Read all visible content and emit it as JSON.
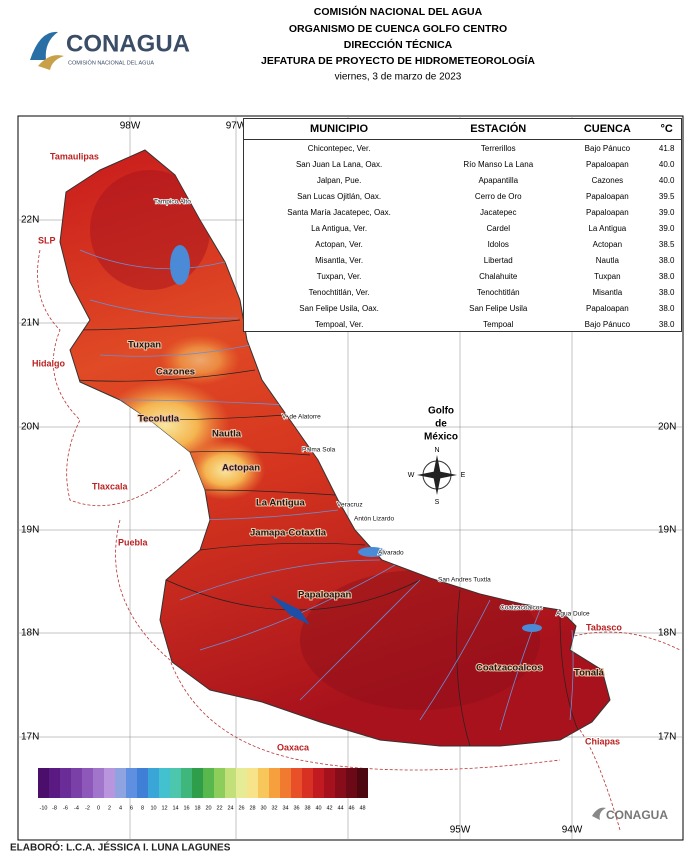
{
  "header": {
    "lines": [
      "COMISIÓN NACIONAL DEL AGUA",
      "ORGANISMO DE CUENCA GOLFO CENTRO",
      "DIRECCIÓN TÉCNICA",
      "JEFATURA DE PROYECTO DE HIDROMETEOROLOGÍA"
    ],
    "date": "viernes, 3 de marzo de 2023"
  },
  "logo": {
    "name": "CONAGUA",
    "subtitle": "COMISIÓN NACIONAL DEL AGUA"
  },
  "table": {
    "columns": [
      "MUNICIPIO",
      "ESTACIÓN",
      "CUENCA",
      "°C"
    ],
    "rows": [
      [
        "Chicontepec, Ver.",
        "Terrerillos",
        "Bajo Pánuco",
        "41.8"
      ],
      [
        "San Juan La Lana, Oax.",
        "Río Manso La Lana",
        "Papaloapan",
        "40.0"
      ],
      [
        "Jalpan, Pue.",
        "Apapantilla",
        "Cazones",
        "40.0"
      ],
      [
        "San Lucas Ojitlán, Oax.",
        "Cerro de Oro",
        "Papaloapan",
        "39.5"
      ],
      [
        "Santa María Jacatepec, Oax.",
        "Jacatepec",
        "Papaloapan",
        "39.0"
      ],
      [
        "La Antigua, Ver.",
        "Cardel",
        "La Antigua",
        "39.0"
      ],
      [
        "Actopan, Ver.",
        "Idolos",
        "Actopan",
        "38.5"
      ],
      [
        "Misantla, Ver.",
        "Libertad",
        "Nautla",
        "38.0"
      ],
      [
        "Tuxpan, Ver.",
        "Chalahuite",
        "Tuxpan",
        "38.0"
      ],
      [
        "Tenochtitlán, Ver.",
        "Tenochtitlán",
        "Misantla",
        "38.0"
      ],
      [
        "San Felipe Usila, Oax.",
        "San Felipe Usila",
        "Papaloapan",
        "38.0"
      ],
      [
        "Tempoal, Ver.",
        "Tempoal",
        "Bajo Pánuco",
        "38.0"
      ]
    ]
  },
  "map": {
    "lon_top": [
      "98W",
      "97W"
    ],
    "lon_bottom": [
      "95W",
      "94W"
    ],
    "lat_left": [
      "22N",
      "21N",
      "20N",
      "19N",
      "18N",
      "17N"
    ],
    "lat_right": [
      "20N",
      "19N",
      "18N",
      "17N"
    ],
    "gulf": [
      "Golfo",
      "de",
      "México"
    ],
    "compass": [
      "N",
      "S",
      "E",
      "W"
    ],
    "states": [
      "Tamaulipas",
      "SLP",
      "Hidalgo",
      "Tlaxcala",
      "Puebla",
      "Oaxaca",
      "Chiapas",
      "Tabasco"
    ],
    "basins": [
      "Tuxpan",
      "Cazones",
      "Tecolutla",
      "Nautla",
      "Actopan",
      "La Antigua",
      "Jamapa-Cotaxtla",
      "Papaloapan",
      "Coatzacoalcos",
      "Tonalá"
    ],
    "places": [
      "Tampico Alto",
      "V. de Alatorre",
      "Palma Sola",
      "Veracruz",
      "Antón Lizardo",
      "Alvarado",
      "San Andres Tuxtla",
      "Coatzacoalcos",
      "Agua Dulce"
    ]
  },
  "legend": {
    "ticks": [
      -10,
      -8,
      -6,
      -4,
      -2,
      0,
      2,
      4,
      6,
      8,
      10,
      12,
      14,
      16,
      18,
      20,
      22,
      24,
      26,
      28,
      30,
      32,
      34,
      36,
      38,
      40,
      42,
      44,
      46,
      48
    ],
    "colors": [
      "#4b0f6b",
      "#5a1a82",
      "#6a2c96",
      "#7b3fa8",
      "#8e58bb",
      "#a175cc",
      "#b895dc",
      "#8fa3e0",
      "#5e8fe0",
      "#3f7fd6",
      "#3aa6d8",
      "#44c1cf",
      "#4cc7ae",
      "#3fb67c",
      "#2e9e4a",
      "#58b84e",
      "#8ccd5c",
      "#c2e07a",
      "#e6eb95",
      "#f6e38a",
      "#f8c75c",
      "#f5a03c",
      "#f07a30",
      "#e8502a",
      "#d93024",
      "#c21a21",
      "#a5121d",
      "#880d1a",
      "#6b0a16",
      "#4d0710"
    ]
  },
  "footer": {
    "author": "ELABORÓ: L.C.A. JÉSSICA I. LUNA LAGUNES",
    "logo": "CONAGUA"
  }
}
